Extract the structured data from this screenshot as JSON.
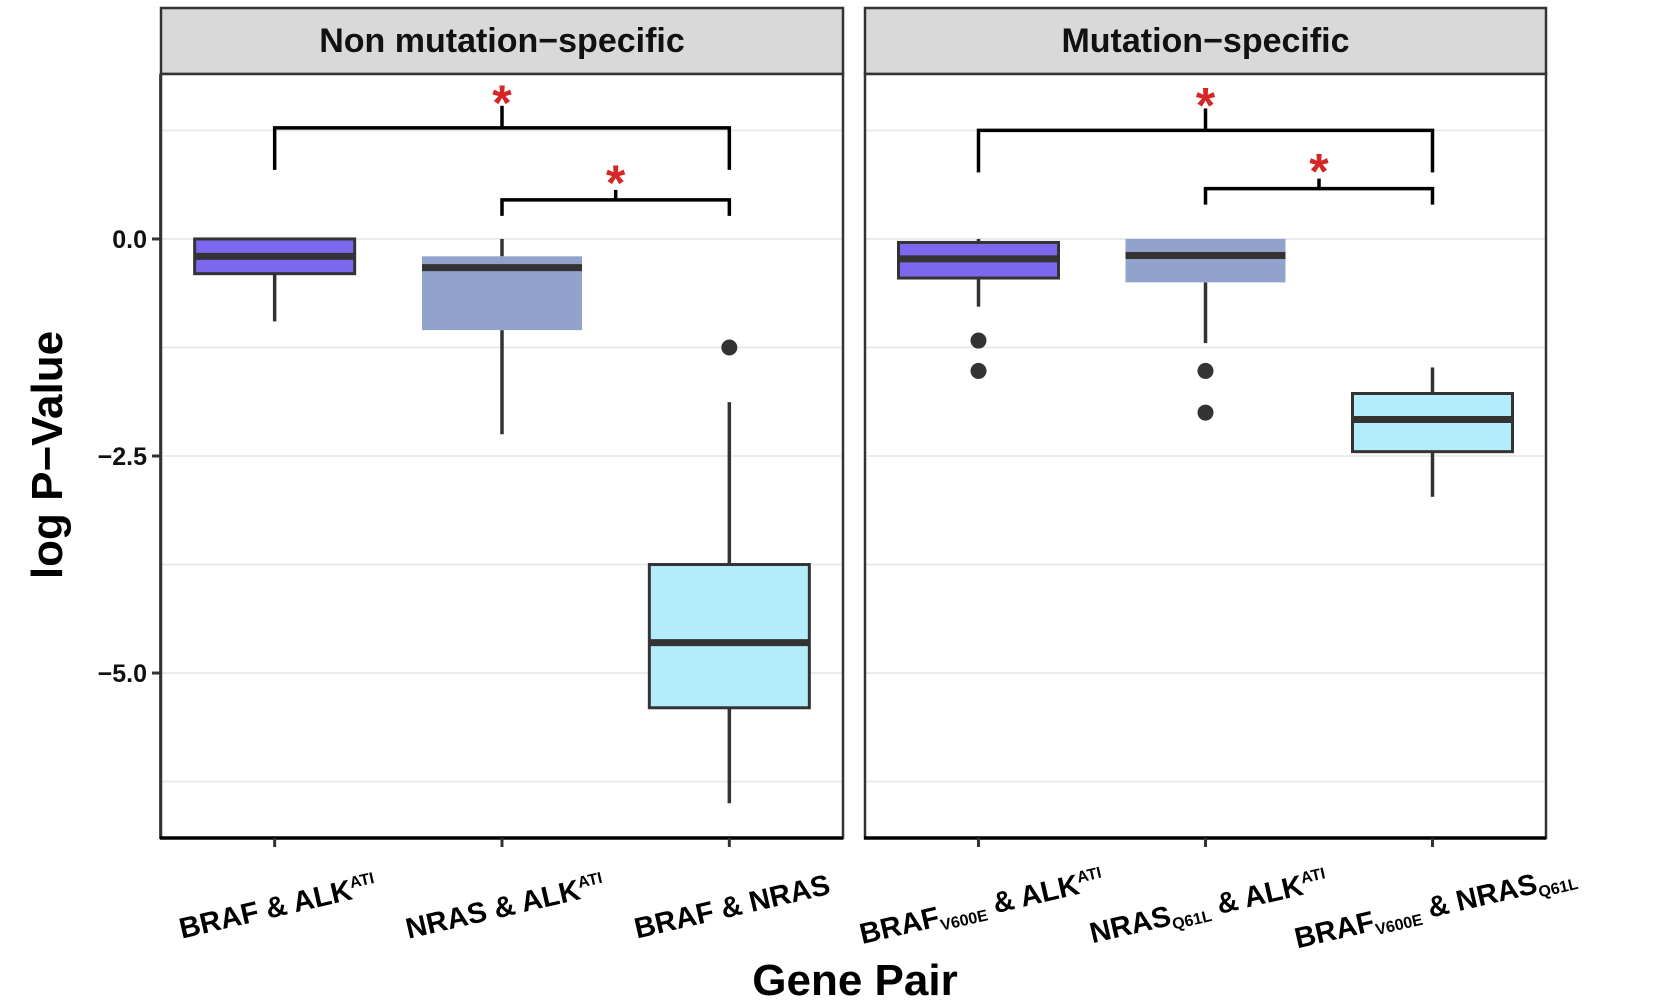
{
  "chart_data": {
    "type": "box",
    "xlabel": "Gene Pair",
    "ylabel": "log P−Value",
    "ylim": [
      -6.9,
      1.9
    ],
    "yticks": [
      0.0,
      -2.5,
      -5.0
    ],
    "ytick_labels": [
      "0.0",
      "−2.5",
      "−5.0"
    ],
    "grid": true,
    "panels": [
      {
        "title": "Non mutation−specific",
        "categories": [
          {
            "base": "BRAF & ALK",
            "sup": "ATI",
            "sub": "",
            "tail": "",
            "tail_sup": "",
            "tail_sub": ""
          },
          {
            "base": "NRAS & ALK",
            "sup": "ATI",
            "sub": "",
            "tail": "",
            "tail_sup": "",
            "tail_sub": ""
          },
          {
            "base": "BRAF & NRAS",
            "sup": "",
            "sub": "",
            "tail": "",
            "tail_sup": "",
            "tail_sub": ""
          }
        ],
        "boxes": [
          {
            "min": -0.95,
            "q1": -0.4,
            "median": -0.2,
            "q3": -0.0,
            "max": -0.0,
            "outliers": [],
            "color": "#7b68ee"
          },
          {
            "min": -2.25,
            "q1": -1.05,
            "median": -0.33,
            "q3": -0.2,
            "max": -0.0,
            "outliers": [],
            "color": "#91a3cc"
          },
          {
            "min": -6.5,
            "q1": -5.4,
            "median": -4.65,
            "q3": -3.75,
            "max": -1.88,
            "outliers": [
              -1.25
            ],
            "color": "#b3ecfa"
          }
        ],
        "comparisons": [
          {
            "from": 0,
            "to": 2,
            "y": 1.28,
            "label": "*"
          },
          {
            "from": 1,
            "to": 2,
            "y": 0.45,
            "label": "*"
          }
        ]
      },
      {
        "title": "Mutation−specific",
        "categories": [
          {
            "base": "BRAF",
            "sup": "",
            "sub": "V600E",
            "tail": " & ALK",
            "tail_sup": "ATI",
            "tail_sub": ""
          },
          {
            "base": "NRAS",
            "sup": "",
            "sub": "Q61L",
            "tail": " & ALK",
            "tail_sup": "ATI",
            "tail_sub": ""
          },
          {
            "base": "BRAF",
            "sup": "",
            "sub": "V600E",
            "tail": " & NRAS",
            "tail_sup": "",
            "tail_sub": "Q61L"
          }
        ],
        "boxes": [
          {
            "min": -0.78,
            "q1": -0.45,
            "median": -0.23,
            "q3": -0.04,
            "max": -0.0,
            "outliers": [
              -1.17,
              -1.52
            ],
            "color": "#7b68ee"
          },
          {
            "min": -1.2,
            "q1": -0.5,
            "median": -0.19,
            "q3": -0.0,
            "max": -0.0,
            "outliers": [
              -1.52,
              -2.0
            ],
            "color": "#91a3cc"
          },
          {
            "min": -2.97,
            "q1": -2.45,
            "median": -2.08,
            "q3": -1.78,
            "max": -1.48,
            "outliers": [],
            "color": "#b3ecfa"
          }
        ],
        "comparisons": [
          {
            "from": 0,
            "to": 2,
            "y": 1.25,
            "label": "*"
          },
          {
            "from": 1,
            "to": 2,
            "y": 0.58,
            "label": "*"
          }
        ]
      }
    ]
  }
}
